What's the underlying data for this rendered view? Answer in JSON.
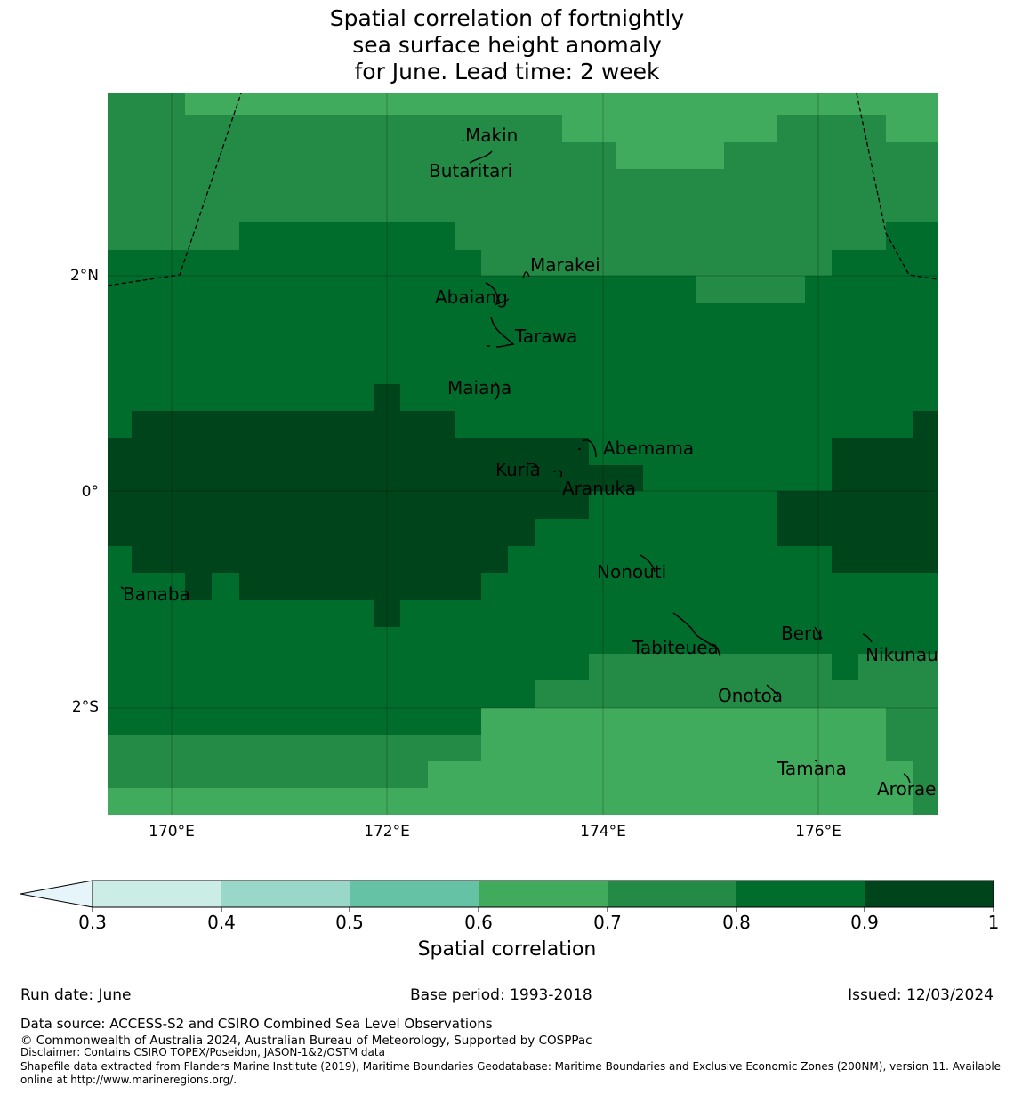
{
  "title": {
    "line1": "Spatial correlation of fortnightly",
    "line2": "sea surface height anomaly",
    "line3": "for June. Lead time: 2 week"
  },
  "map": {
    "lat_ticks": [
      "2°N",
      "0°",
      "2°S"
    ],
    "lon_ticks": [
      "170°E",
      "172°E",
      "174°E",
      "176°E"
    ],
    "islands": [
      "Makin",
      "Butaritari",
      "Marakei",
      "Abaiang",
      "Tarawa",
      "Maiana",
      "Abemama",
      "Kuria",
      "Aranuka",
      "Banaba",
      "Nonouti",
      "Tabiteuea",
      "Beru",
      "Nikunau",
      "Onotoa",
      "Tamana",
      "Arorae"
    ],
    "colors": {
      "c06": "#41ab5d",
      "c07": "#238b45",
      "c08": "#006d2c",
      "c09": "#00441b"
    }
  },
  "colorbar": {
    "ticks": [
      "0.3",
      "0.4",
      "0.5",
      "0.6",
      "0.7",
      "0.8",
      "0.9",
      "1"
    ],
    "colors": [
      "#e5f5f9",
      "#ccece6",
      "#99d8c9",
      "#66c2a4",
      "#41ab5d",
      "#238b45",
      "#006d2c",
      "#00441b"
    ],
    "label": "Spatial correlation"
  },
  "footer": {
    "run_date": "Run date: June",
    "base_period": "Base period: 1993-2018",
    "issued": "Issued: 12/03/2024",
    "data_source": "Data source: ACCESS-S2 and CSIRO Combined Sea Level Observations",
    "copyright": "© Commonwealth of Australia 2024, Australian Bureau of Meteorology, Supported by COSPPac",
    "disclaimer": "Disclaimer: Contains CSIRO TOPEX/Poseidon, JASON-1&2/OSTM data",
    "shapefile1": "Shapefile data extracted from Flanders Marine Institute (2019), Maritime Boundaries Geodatabase: Maritime Boundaries and Exclusive Economic Zones (200NM), version 11. Available",
    "shapefile2": "online at http://www.marineregions.org/."
  }
}
